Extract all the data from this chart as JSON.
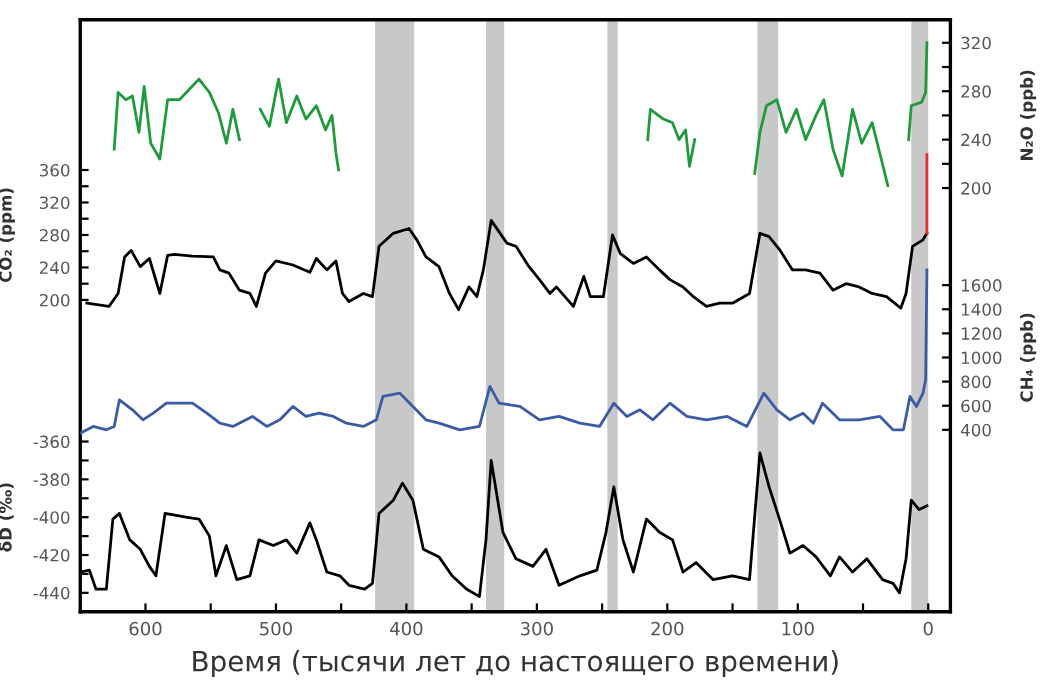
{
  "chart_data": [
    {
      "type": "line",
      "xlabel": "Время (тысячи лет до настоящего времени)",
      "ylabel": "CO₂ (ppm)",
      "y2label": "N₂O (ppb)",
      "xlim": [
        650,
        -17
      ],
      "xticks": [
        600,
        {
          "value": 550,
          "label": null
        },
        500,
        {
          "value": 450,
          "label": null
        },
        400,
        {
          "value": 350,
          "label": null
        },
        300,
        {
          "value": 250,
          "label": null
        },
        200,
        {
          "value": 150,
          "label": null
        },
        100,
        {
          "value": 50,
          "label": null
        },
        0
      ],
      "ylim": [
        -184,
        545
      ],
      "yticks": [
        200,
        {
          "value": 220,
          "label": null
        },
        240,
        {
          "value": 260,
          "label": null
        },
        280,
        {
          "value": 300,
          "label": null
        },
        320,
        {
          "value": 340,
          "label": null
        },
        360
      ],
      "y2lim": [
        -150,
        339
      ],
      "y2ticks": [
        200,
        {
          "value": 220,
          "label": null
        },
        240,
        {
          "value": 260,
          "label": null
        },
        280,
        {
          "value": 300,
          "label": null
        },
        320
      ],
      "grid": false,
      "legend": false,
      "line_style": "solid",
      "marker": "none",
      "bands": [
        {
          "axis": "x",
          "from": 424,
          "to": 394,
          "color": "#c8c8c8"
        },
        {
          "axis": "x",
          "from": 339,
          "to": 325,
          "color": "#c8c8c8"
        },
        {
          "axis": "x",
          "from": 246,
          "to": 238,
          "color": "#c8c8c8"
        },
        {
          "axis": "x",
          "from": 131,
          "to": 115,
          "color": "#c8c8c8"
        },
        {
          "axis": "x",
          "from": 13,
          "to": 0,
          "color": "#c8c8c8"
        }
      ],
      "series": [
        {
          "axis": "y2",
          "color": "#1f9a3c",
          "x": [
            624,
            621,
            615,
            610,
            605,
            601,
            596,
            589,
            583,
            574,
            566,
            559,
            551,
            544,
            538,
            533,
            528,
            520,
            512,
            505,
            498,
            492,
            484,
            477,
            469,
            462,
            457,
            454,
            452,
            300,
            215,
            213,
            203,
            196,
            191,
            186,
            183,
            179,
            150,
            133,
            129,
            124,
            116,
            109,
            101,
            94,
            86,
            80,
            73,
            66,
            58,
            51,
            43,
            36,
            31,
            20,
            15,
            13,
            5,
            2,
            1
          ],
          "values": [
            232,
            279,
            273,
            276,
            246,
            284,
            237,
            224,
            273,
            273,
            282,
            290,
            279,
            262,
            237,
            265,
            240,
            null,
            265,
            251,
            290,
            254,
            276,
            257,
            268,
            248,
            260,
            229,
            215,
            null,
            240,
            265,
            257,
            254,
            240,
            248,
            218,
            240,
            null,
            212,
            246,
            268,
            273,
            246,
            265,
            240,
            260,
            273,
            232,
            210,
            265,
            237,
            254,
            224,
            202,
            null,
            240,
            268,
            271,
            279,
            320
          ]
        },
        {
          "axis": "y",
          "color": "#000000",
          "x": [
            645,
            628,
            621,
            616,
            611,
            604,
            597,
            589,
            583,
            578,
            564,
            548,
            543,
            536,
            528,
            520,
            515,
            508,
            500,
            487,
            474,
            469,
            461,
            454,
            449,
            444,
            433,
            426,
            421,
            410,
            398,
            392,
            385,
            375,
            367,
            360,
            352,
            346,
            341,
            335,
            323,
            316,
            306,
            298,
            290,
            285,
            272,
            264,
            259,
            249,
            242,
            236,
            226,
            216,
            206,
            198,
            188,
            180,
            170,
            160,
            150,
            137,
            129,
            122,
            114,
            104,
            94,
            83,
            73,
            63,
            53,
            43,
            32,
            21,
            17,
            12,
            4,
            1
          ],
          "values": [
            196,
            192,
            208,
            253,
            261,
            241,
            251,
            208,
            255,
            256,
            254,
            253,
            237,
            233,
            212,
            208,
            192,
            233,
            248,
            243,
            234,
            251,
            237,
            248,
            208,
            198,
            208,
            204,
            266,
            282,
            288,
            274,
            253,
            241,
            208,
            188,
            216,
            204,
            237,
            298,
            270,
            266,
            241,
            225,
            208,
            216,
            192,
            229,
            204,
            204,
            280,
            257,
            245,
            253,
            237,
            225,
            216,
            204,
            192,
            196,
            196,
            208,
            282,
            278,
            262,
            237,
            237,
            233,
            212,
            220,
            216,
            208,
            204,
            190,
            208,
            266,
            274,
            282
          ]
        },
        {
          "axis": "y",
          "color": "#e0312f",
          "x": [
            1,
            1
          ],
          "values": [
            282,
            379
          ]
        }
      ]
    },
    {
      "type": "line",
      "ylabel": "δD (‰)",
      "y2label": "CH₄ (ppb)",
      "tick_labels": "y",
      "xlim": [
        650,
        -17
      ],
      "ylim": [
        -450,
        -137
      ],
      "yticks": [
        -440,
        {
          "value": -430,
          "label": null
        },
        -420,
        {
          "value": -410,
          "label": null
        },
        -400,
        {
          "value": -390,
          "label": null
        },
        -380,
        {
          "value": -370,
          "label": null
        },
        -360
      ],
      "y2lim": [
        -1109,
        3801
      ],
      "y2ticks": [
        400,
        600,
        800,
        1000,
        1200,
        1400,
        1600
      ],
      "grid": false,
      "legend": false,
      "line_style": "solid",
      "marker": "none",
      "series": [
        {
          "axis": "y2",
          "color": "#3b5ba5",
          "x": [
            650,
            640,
            630,
            624,
            620,
            610,
            602,
            594,
            584,
            564,
            553,
            543,
            533,
            518,
            507,
            497,
            487,
            477,
            467,
            456,
            446,
            433,
            423,
            418,
            405,
            395,
            385,
            375,
            359,
            344,
            336,
            329,
            313,
            298,
            283,
            267,
            252,
            241,
            231,
            221,
            211,
            198,
            185,
            170,
            154,
            139,
            126,
            116,
            106,
            96,
            88,
            81,
            68,
            53,
            37,
            27,
            19,
            14,
            9,
            4,
            2,
            1
          ],
          "values": [
            372,
            428,
            400,
            428,
            649,
            566,
            483,
            538,
            621,
            621,
            538,
            455,
            428,
            511,
            428,
            483,
            594,
            511,
            538,
            511,
            455,
            428,
            483,
            677,
            704,
            594,
            483,
            455,
            400,
            428,
            760,
            621,
            594,
            483,
            511,
            455,
            428,
            621,
            511,
            566,
            483,
            621,
            511,
            483,
            511,
            428,
            704,
            566,
            483,
            538,
            455,
            621,
            483,
            483,
            511,
            400,
            400,
            677,
            594,
            704,
            815,
            1727
          ]
        },
        {
          "axis": "y",
          "color": "#000000",
          "x": [
            650,
            643,
            638,
            630,
            625,
            620,
            612,
            604,
            597,
            592,
            585,
            569,
            559,
            551,
            546,
            538,
            530,
            520,
            513,
            502,
            492,
            484,
            474,
            469,
            461,
            451,
            444,
            432,
            426,
            421,
            410,
            403,
            395,
            387,
            375,
            365,
            354,
            344,
            339,
            335,
            326,
            316,
            303,
            293,
            283,
            267,
            254,
            247,
            241,
            234,
            226,
            216,
            206,
            196,
            188,
            178,
            165,
            150,
            137,
            129,
            122,
            114,
            106,
            96,
            86,
            75,
            68,
            58,
            47,
            35,
            27,
            22,
            17,
            13,
            7,
            1
          ],
          "values": [
            -429,
            -428,
            -438,
            -438,
            -401,
            -398,
            -412,
            -417,
            -426,
            -431,
            -398,
            -400,
            -401,
            -410,
            -431,
            -415,
            -433,
            -431,
            -412,
            -415,
            -412,
            -419,
            -403,
            -412,
            -429,
            -431,
            -436,
            -438,
            -435,
            -398,
            -391,
            -382,
            -391,
            -417,
            -421,
            -431,
            -438,
            -442,
            -412,
            -370,
            -408,
            -422,
            -426,
            -417,
            -436,
            -431,
            -428,
            -408,
            -384,
            -412,
            -429,
            -401,
            -408,
            -412,
            -429,
            -424,
            -433,
            -431,
            -433,
            -366,
            -384,
            -401,
            -419,
            -415,
            -421,
            -431,
            -421,
            -429,
            -422,
            -433,
            -435,
            -440,
            -422,
            -391,
            -396,
            -394
          ]
        }
      ]
    }
  ]
}
